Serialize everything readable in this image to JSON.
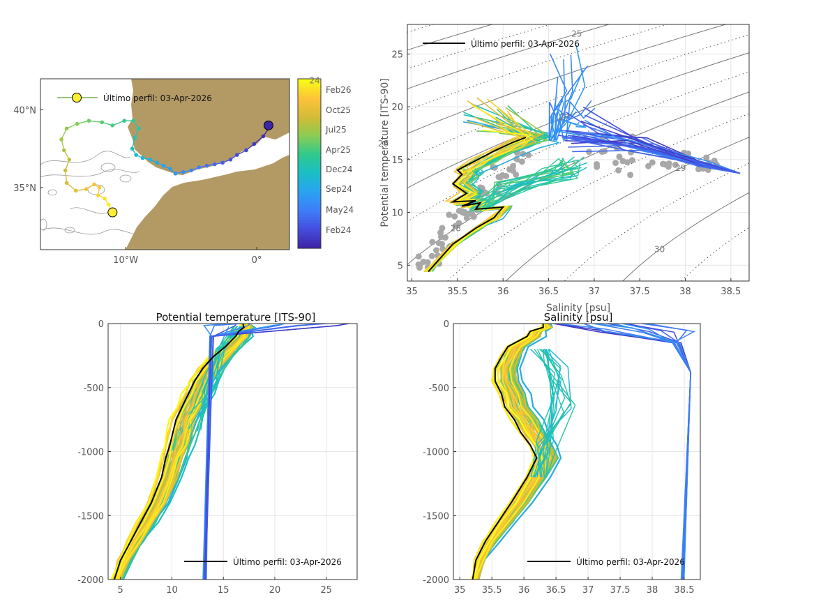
{
  "colors": {
    "land": "#b39a65",
    "latest_profile": "#000000",
    "latest_marker": "#ffee33",
    "climatology": "#a8a8a8",
    "colormap": [
      "#3e26a8",
      "#4550e0",
      "#3e7ff9",
      "#2aa3f0",
      "#1bbec5",
      "#30c98c",
      "#8bcc53",
      "#d3bb37",
      "#fcc33a",
      "#f9fb15"
    ]
  },
  "chart_data": [
    {
      "id": "map",
      "type": "map",
      "title": "",
      "xlabel": "",
      "ylabel": "",
      "xlim": [
        -16.5,
        2.5
      ],
      "ylim": [
        31,
        42
      ],
      "x_ticks": [
        -10,
        0
      ],
      "x_tick_labels": [
        "10°W",
        "0°"
      ],
      "y_ticks": [
        35,
        40
      ],
      "y_tick_labels": [
        "35°N",
        "40°N"
      ],
      "legend": {
        "label": "Último perfil: 03-Apr-2026",
        "position": "top-left"
      },
      "colorbar": {
        "labels": [
          "Feb26",
          "Oct25",
          "Jul25",
          "Apr25",
          "Dec24",
          "Sep24",
          "May24",
          "Feb24"
        ]
      },
      "track": {
        "lon": [
          1.0,
          0.5,
          -0.2,
          -0.8,
          -1.5,
          -2.0,
          -2.6,
          -3.2,
          -3.8,
          -4.4,
          -5.0,
          -5.6,
          -6.2,
          -6.6,
          -7.1,
          -7.6,
          -8.1,
          -8.7,
          -9.2,
          -9.5,
          -9.3,
          -9.0,
          -9.4,
          -10.1,
          -11.0,
          -11.8,
          -12.8,
          -13.7,
          -14.5,
          -14.9,
          -14.7,
          -14.3,
          -14.6,
          -14.5,
          -13.8,
          -13.0,
          -12.4,
          -12.0,
          -12.1,
          -11.6,
          -11.3,
          -11.0
        ],
        "lat": [
          38.9,
          38.3,
          37.8,
          37.4,
          37.1,
          36.8,
          36.6,
          36.5,
          36.4,
          36.3,
          36.1,
          36.0,
          35.9,
          36.2,
          36.4,
          36.6,
          36.8,
          36.9,
          37.1,
          37.5,
          38.2,
          38.8,
          39.3,
          39.3,
          39.0,
          39.2,
          39.3,
          39.1,
          38.8,
          38.1,
          37.4,
          36.8,
          36.1,
          35.3,
          34.8,
          34.9,
          35.2,
          35.0,
          34.5,
          34.3,
          33.9,
          33.4
        ]
      },
      "first_position": {
        "lon": 0.9,
        "lat": 39.0
      },
      "last_position": {
        "lon": -11.0,
        "lat": 33.4
      }
    },
    {
      "id": "ts",
      "type": "scatter",
      "title": "",
      "xlabel": "Salinity [psu]",
      "ylabel": "Potential temperature [ITS-90]",
      "xlim": [
        34.95,
        38.7
      ],
      "ylim": [
        3.5,
        27.8
      ],
      "x_ticks": [
        35,
        35.5,
        36,
        36.5,
        37,
        37.5,
        38,
        38.5
      ],
      "y_ticks": [
        5,
        10,
        15,
        20,
        25
      ],
      "grid": true,
      "legend": {
        "label": "Último perfil: 03-Apr-2026",
        "position": "top-left"
      },
      "isopycnal_labels": [
        "24",
        "25",
        "26",
        "27",
        "28",
        "29",
        "30"
      ],
      "latest_profile": {
        "S": [
          35.18,
          35.45,
          35.7,
          35.9,
          36.0,
          35.7,
          35.75,
          35.55,
          35.7,
          35.45,
          35.6,
          35.45,
          35.55,
          35.5,
          35.7,
          35.9,
          36.1,
          36.25
        ],
        "T": [
          4.4,
          7.0,
          8.5,
          9.5,
          10.5,
          10.3,
          10.9,
          10.6,
          11.1,
          11.0,
          11.8,
          12.7,
          13.6,
          14.0,
          14.9,
          15.8,
          16.6,
          17.1
        ]
      },
      "older_warm_profiles": {
        "S_range": [
          36.5,
          36.95
        ],
        "T_range": [
          17.0,
          27.3
        ]
      },
      "mediterranean_profiles": {
        "S_range": [
          36.6,
          38.6
        ],
        "T_range": [
          13.6,
          20.2
        ]
      },
      "climatology_points": {
        "S_range": [
          35.05,
          38.4
        ],
        "T_range": [
          4.5,
          18.5
        ]
      }
    },
    {
      "id": "temp_profile",
      "type": "line",
      "title": "Potential temperature [ITS-90]",
      "xlabel": "",
      "ylabel": "",
      "xlim": [
        3.8,
        28
      ],
      "ylim": [
        -2000,
        0
      ],
      "x_ticks": [
        5,
        10,
        15,
        20,
        25
      ],
      "y_ticks": [
        0,
        -500,
        -1000,
        -1500,
        -2000
      ],
      "grid": true,
      "legend": {
        "label": "Último perfil: 03-Apr-2026",
        "position": "bottom-right"
      },
      "latest_profile": {
        "T": [
          16.9,
          17.0,
          16.5,
          16.2,
          15.2,
          14.0,
          13.0,
          12.2,
          11.6,
          11.0,
          10.4,
          10.1,
          9.8,
          9.4,
          9.0,
          8.0,
          7.0,
          6.0,
          5.0,
          4.4
        ],
        "depth": [
          0,
          -30,
          -60,
          -100,
          -180,
          -260,
          -350,
          -450,
          -550,
          -650,
          -750,
          -850,
          -950,
          -1050,
          -1200,
          -1400,
          -1550,
          -1700,
          -1850,
          -2000
        ]
      },
      "mediterranean_profile_range": {
        "T": [
          13.0,
          13.4
        ],
        "depth": [
          -100,
          -2000
        ]
      },
      "surface_profiles_max_T": 27.6
    },
    {
      "id": "sal_profile",
      "type": "line",
      "title": "Salinity [psu]",
      "xlabel": "",
      "ylabel": "",
      "xlim": [
        34.9,
        38.75
      ],
      "ylim": [
        -2000,
        0
      ],
      "x_ticks": [
        35,
        35.5,
        36,
        36.5,
        37,
        37.5,
        38,
        38.5
      ],
      "y_ticks": [
        0,
        -500,
        -1000,
        -1500,
        -2000
      ],
      "grid": true,
      "legend": {
        "label": "Último perfil: 03-Apr-2026",
        "position": "bottom-right"
      },
      "latest_profile": {
        "S": [
          36.3,
          36.3,
          36.1,
          36.05,
          35.75,
          35.65,
          35.55,
          35.55,
          35.65,
          35.7,
          35.85,
          35.95,
          36.1,
          36.2,
          36.05,
          35.8,
          35.6,
          35.4,
          35.25,
          35.2
        ],
        "depth": [
          0,
          -30,
          -60,
          -100,
          -180,
          -260,
          -350,
          -450,
          -550,
          -650,
          -750,
          -850,
          -950,
          -1050,
          -1200,
          -1400,
          -1550,
          -1700,
          -1850,
          -2000
        ]
      },
      "mediterranean_profile_range": {
        "S": [
          38.45,
          38.6
        ],
        "depth": [
          -100,
          -2000
        ]
      }
    }
  ]
}
